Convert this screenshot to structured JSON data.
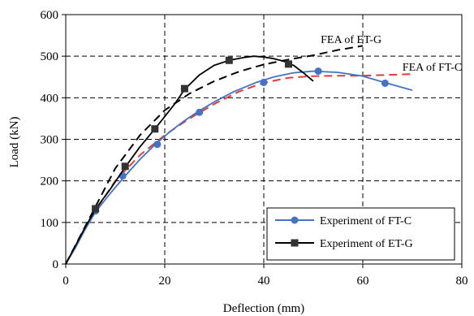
{
  "chart_data": {
    "type": "line",
    "xlabel": "Deflection (mm)",
    "ylabel": "Load (kN)",
    "xlim": [
      0,
      80
    ],
    "ylim": [
      0,
      600
    ],
    "x_ticks": [
      "0",
      "20",
      "40",
      "60",
      "80"
    ],
    "y_ticks": [
      "0",
      "100",
      "200",
      "300",
      "400",
      "500",
      "600"
    ],
    "grid": "dashed",
    "legend_position": "bottom-right",
    "series": [
      {
        "name": "Experiment of FT-C",
        "color": "#4472c4",
        "line_style": "solid",
        "marker": "circle",
        "x": [
          0,
          2,
          4,
          6,
          9,
          12,
          15,
          18,
          21,
          24,
          26.5,
          30,
          34,
          38.5,
          42,
          46,
          50,
          55,
          60,
          64,
          67,
          70
        ],
        "y": [
          0,
          40,
          85,
          125,
          170,
          212,
          252,
          287,
          318,
          345,
          365,
          390,
          415,
          437,
          450,
          460,
          464,
          461,
          452,
          438,
          428,
          418
        ],
        "marker_x": [
          6,
          11.5,
          18.5,
          27,
          40,
          51,
          64.5
        ],
        "marker_y": [
          128,
          212,
          288,
          365,
          437,
          464,
          435
        ]
      },
      {
        "name": "Experiment of ET-G",
        "color": "#000000",
        "line_style": "solid",
        "marker": "square",
        "x": [
          0,
          2,
          4,
          6,
          9,
          12,
          15,
          18,
          20,
          22,
          24,
          27,
          30,
          33,
          36,
          38,
          40,
          42,
          44,
          46,
          48,
          50
        ],
        "y": [
          0,
          45,
          90,
          132,
          180,
          233,
          282,
          325,
          355,
          385,
          420,
          455,
          478,
          490,
          497,
          500,
          498,
          494,
          488,
          478,
          460,
          440
        ],
        "marker_x": [
          6,
          12,
          18,
          24,
          33,
          45
        ],
        "marker_y": [
          133,
          235,
          325,
          422,
          490,
          481
        ]
      },
      {
        "name": "FEA of FT-C",
        "color": "#e03c3c",
        "line_style": "dashed",
        "x": [
          0,
          5,
          10,
          15,
          20,
          25,
          30,
          35,
          40,
          45,
          50,
          55,
          60,
          65,
          70
        ],
        "y": [
          0,
          110,
          200,
          262,
          310,
          350,
          385,
          415,
          436,
          448,
          452,
          453,
          453,
          455,
          457
        ]
      },
      {
        "name": "FEA of ET-G",
        "color": "#000000",
        "line_style": "dashed",
        "x": [
          0,
          5,
          10,
          15,
          20,
          25,
          30,
          35,
          40,
          45,
          50,
          55,
          60
        ],
        "y": [
          0,
          115,
          230,
          310,
          370,
          410,
          440,
          463,
          480,
          492,
          502,
          515,
          525
        ]
      }
    ],
    "annotations": [
      {
        "text": "FEA of ET-G",
        "x": 51.5,
        "y": 532
      },
      {
        "text": "FEA of FT-C",
        "x": 68,
        "y": 465
      }
    ]
  }
}
